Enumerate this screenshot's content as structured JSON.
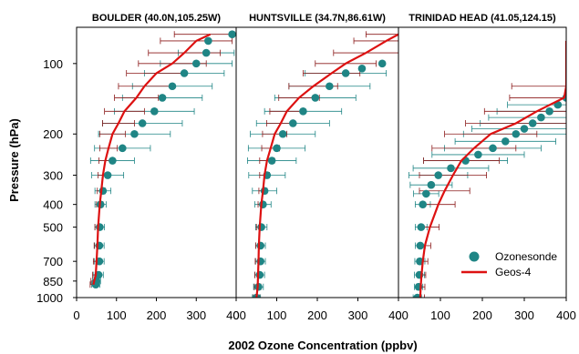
{
  "chart_data": [
    {
      "type": "line",
      "title": "BOULDER (40.0N,105.25W)",
      "pressure_levels_hPa": [
        75,
        80,
        90,
        100,
        110,
        125,
        140,
        160,
        180,
        200,
        230,
        260,
        300,
        350,
        400,
        500,
        600,
        700,
        800,
        850,
        880
      ],
      "ozonesonde": {
        "pressure": [
          75,
          80,
          90,
          100,
          110,
          125,
          140,
          160,
          180,
          200,
          230,
          260,
          300,
          350,
          400,
          500,
          600,
          700,
          800,
          850,
          880
        ],
        "mean": [
          390,
          330,
          325,
          300,
          270,
          240,
          215,
          195,
          165,
          145,
          115,
          90,
          78,
          66,
          60,
          58,
          57,
          57,
          55,
          50,
          48
        ],
        "sd": [
          0,
          0,
          70,
          90,
          100,
          100,
          100,
          100,
          100,
          90,
          70,
          55,
          40,
          20,
          14,
          12,
          12,
          12,
          12,
          10,
          10
        ]
      },
      "geos4": {
        "pressure": [
          75,
          80,
          90,
          100,
          110,
          125,
          140,
          160,
          180,
          200,
          230,
          260,
          300,
          350,
          400,
          500,
          600,
          700,
          800,
          850,
          880
        ],
        "mean": [
          335,
          300,
          270,
          240,
          200,
          170,
          150,
          120,
          105,
          90,
          80,
          72,
          66,
          62,
          58,
          54,
          52,
          50,
          48,
          44,
          42
        ],
        "sd": [
          90,
          90,
          90,
          85,
          75,
          65,
          55,
          50,
          40,
          32,
          22,
          16,
          12,
          10,
          8,
          8,
          8,
          8,
          8,
          8,
          8
        ]
      }
    },
    {
      "type": "line",
      "title": "HUNTSVILLE (34.7N,86.61W)",
      "pressure_levels_hPa": [
        75,
        80,
        90,
        100,
        110,
        125,
        140,
        160,
        180,
        200,
        230,
        260,
        300,
        350,
        400,
        500,
        600,
        700,
        800,
        900,
        1000
      ],
      "ozonesonde": {
        "pressure": [
          100,
          105,
          110,
          125,
          140,
          160,
          180,
          200,
          230,
          260,
          300,
          350,
          400,
          500,
          600,
          700,
          800,
          900,
          1000
        ],
        "mean": [
          360,
          310,
          270,
          230,
          195,
          165,
          140,
          115,
          100,
          88,
          76,
          70,
          66,
          62,
          60,
          60,
          58,
          55,
          50
        ],
        "sd": [
          0,
          0,
          100,
          100,
          100,
          95,
          90,
          80,
          70,
          60,
          45,
          30,
          20,
          14,
          12,
          12,
          12,
          12,
          10
        ]
      },
      "geos4": {
        "pressure": [
          75,
          80,
          90,
          100,
          110,
          125,
          140,
          160,
          180,
          200,
          230,
          260,
          300,
          350,
          400,
          500,
          600,
          700,
          800,
          900,
          1000
        ],
        "mean": [
          400,
          370,
          320,
          270,
          235,
          190,
          155,
          125,
          110,
          95,
          85,
          76,
          70,
          66,
          62,
          58,
          56,
          55,
          54,
          53,
          50
        ],
        "sd": [
          80,
          80,
          80,
          75,
          70,
          60,
          50,
          42,
          35,
          30,
          22,
          18,
          12,
          10,
          8,
          8,
          8,
          8,
          8,
          8,
          8
        ]
      }
    },
    {
      "type": "line",
      "title": "TRINIDAD HEAD (41.05,124.15)",
      "pressure_levels_hPa": [
        80,
        90,
        100,
        110,
        125,
        140,
        160,
        180,
        200,
        230,
        260,
        300,
        350,
        400,
        500,
        600,
        700,
        800,
        900,
        1000
      ],
      "ozonesonde": {
        "pressure": [
          140,
          150,
          160,
          170,
          180,
          190,
          200,
          215,
          230,
          245,
          260,
          280,
          300,
          330,
          360,
          400,
          500,
          600,
          700,
          800,
          900,
          1000
        ],
        "mean": [
          400,
          380,
          360,
          340,
          320,
          300,
          280,
          255,
          225,
          190,
          160,
          125,
          95,
          78,
          66,
          58,
          54,
          52,
          51,
          50,
          48,
          45
        ],
        "sd": [
          0,
          120,
          125,
          125,
          125,
          125,
          125,
          120,
          115,
          110,
          100,
          90,
          70,
          50,
          30,
          18,
          14,
          12,
          12,
          12,
          10,
          10
        ]
      },
      "geos4": {
        "pressure": [
          80,
          90,
          100,
          110,
          125,
          140,
          160,
          180,
          200,
          230,
          260,
          300,
          350,
          400,
          500,
          600,
          700,
          800,
          900,
          1000
        ],
        "mean": [
          400,
          400,
          400,
          400,
          400,
          395,
          330,
          280,
          220,
          180,
          150,
          130,
          110,
          95,
          75,
          63,
          58,
          55,
          53,
          52
        ],
        "sd": [
          0,
          0,
          0,
          0,
          130,
          130,
          125,
          120,
          110,
          100,
          90,
          80,
          60,
          40,
          22,
          14,
          12,
          10,
          10,
          10
        ]
      }
    }
  ],
  "axes": {
    "x_label": "2002 Ozone Concentration (ppbv)",
    "y_label": "Pressure (hPa)",
    "x_range": [
      0,
      400
    ],
    "x_ticks": [
      0,
      100,
      200,
      300,
      400
    ],
    "y_range": [
      70,
      1000
    ],
    "y_scale": "log (inverted)",
    "y_ticks": [
      100,
      200,
      300,
      400,
      500,
      700,
      850,
      1000
    ]
  },
  "legend": {
    "placement": "bottom-right of third panel",
    "ozonesonde_label": "Ozonesonde",
    "geos4_label": "Geos-4"
  },
  "colors": {
    "ozonesonde": "#1f8585",
    "geos4": "#dd1111",
    "geos4_bars": "#8b1a1a"
  }
}
